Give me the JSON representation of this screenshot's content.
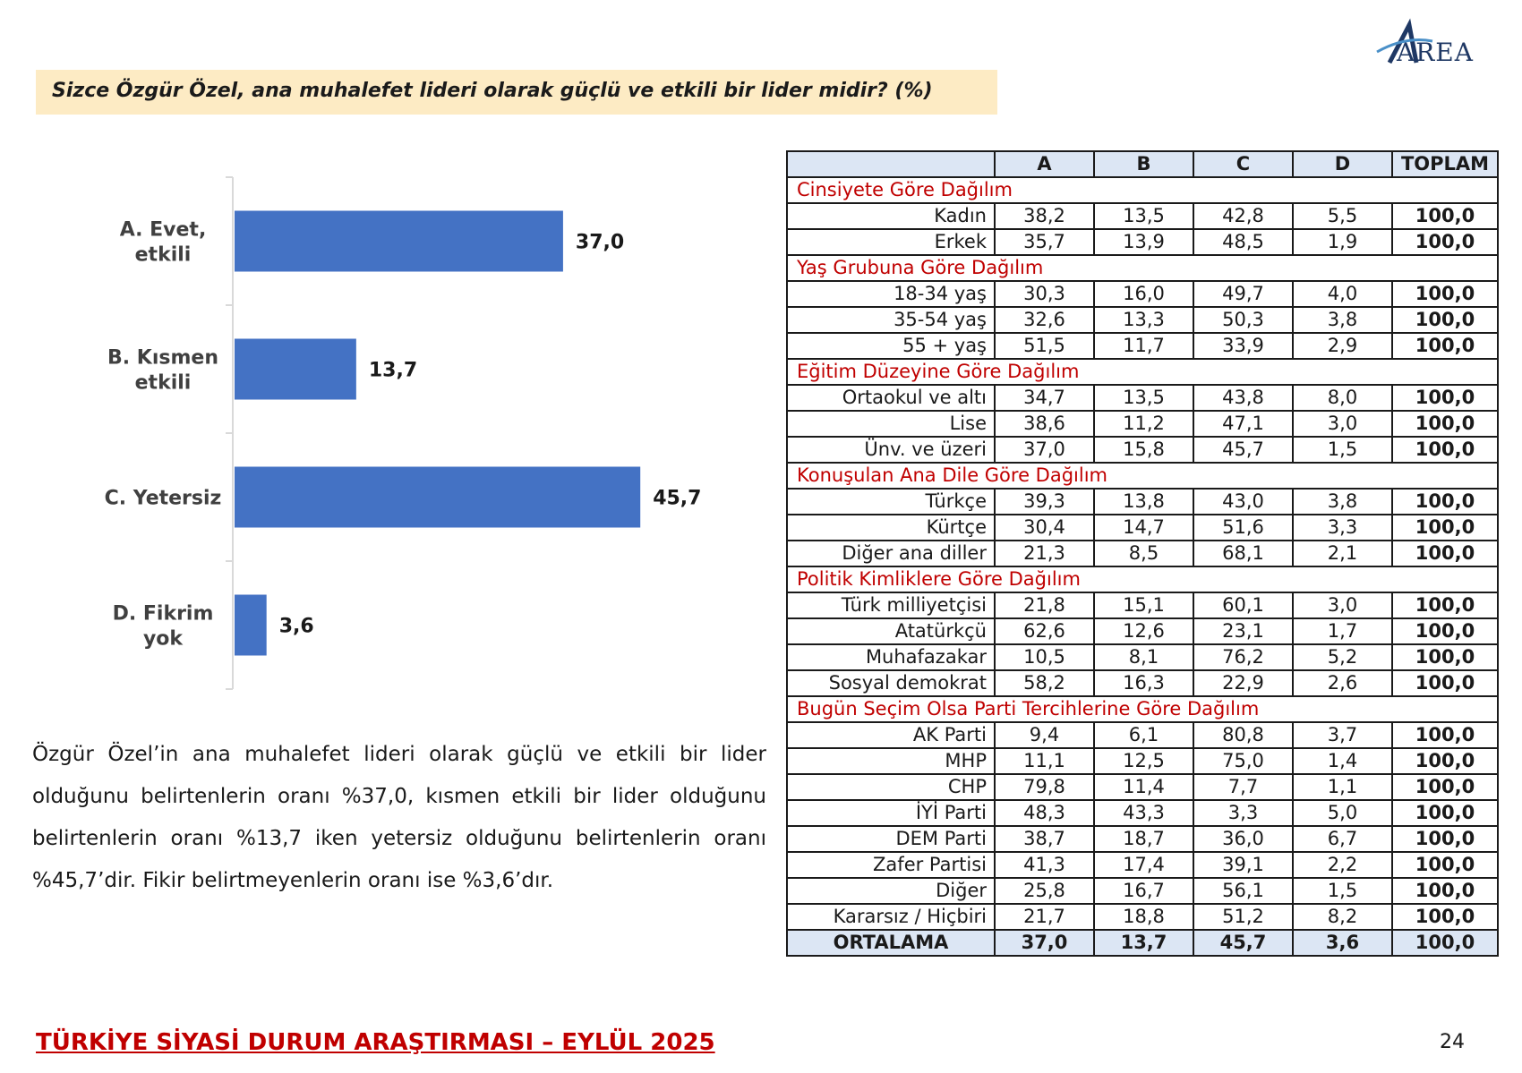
{
  "brand": {
    "logo_text": "AREA"
  },
  "question": "Sizce Özgür Özel, ana muhalefet lideri olarak güçlü ve etkili bir lider midir? (%)",
  "chart_data": {
    "type": "bar",
    "orientation": "horizontal",
    "categories": [
      [
        "A. Evet,",
        "etkili"
      ],
      [
        "B. Kısmen",
        "etkili"
      ],
      [
        "C. Yetersiz"
      ],
      [
        "D. Fikrim",
        "yok"
      ]
    ],
    "values": [
      37.0,
      13.7,
      45.7,
      3.6
    ],
    "value_labels": [
      "37,0",
      "13,7",
      "45,7",
      "3,6"
    ],
    "xlim": [
      0,
      60
    ],
    "grid": false,
    "bar_color": "#4472c4"
  },
  "summary": "Özgür Özel’in ana muhalefet lideri olarak güçlü ve etkili bir lider olduğunu belirtenlerin oranı %37,0, kısmen etkili bir lider olduğunu belirtenlerin oranı %13,7 iken yetersiz olduğunu belirtenlerin oranı %45,7’dir. Fikir belirtmeyenlerin oranı ise %3,6’dır.",
  "table": {
    "headers": [
      "",
      "A",
      "B",
      "C",
      "D",
      "TOPLAM"
    ],
    "sections": [
      {
        "title": "Cinsiyete Göre Dağılım",
        "rows": [
          [
            "Kadın",
            "38,2",
            "13,5",
            "42,8",
            "5,5",
            "100,0"
          ],
          [
            "Erkek",
            "35,7",
            "13,9",
            "48,5",
            "1,9",
            "100,0"
          ]
        ]
      },
      {
        "title": "Yaş Grubuna Göre Dağılım",
        "rows": [
          [
            "18-34 yaş",
            "30,3",
            "16,0",
            "49,7",
            "4,0",
            "100,0"
          ],
          [
            "35-54 yaş",
            "32,6",
            "13,3",
            "50,3",
            "3,8",
            "100,0"
          ],
          [
            "55 + yaş",
            "51,5",
            "11,7",
            "33,9",
            "2,9",
            "100,0"
          ]
        ]
      },
      {
        "title": "Eğitim Düzeyine Göre Dağılım",
        "rows": [
          [
            "Ortaokul ve altı",
            "34,7",
            "13,5",
            "43,8",
            "8,0",
            "100,0"
          ],
          [
            "Lise",
            "38,6",
            "11,2",
            "47,1",
            "3,0",
            "100,0"
          ],
          [
            "Ünv. ve üzeri",
            "37,0",
            "15,8",
            "45,7",
            "1,5",
            "100,0"
          ]
        ]
      },
      {
        "title": "Konuşulan Ana Dile Göre Dağılım",
        "rows": [
          [
            "Türkçe",
            "39,3",
            "13,8",
            "43,0",
            "3,8",
            "100,0"
          ],
          [
            "Kürtçe",
            "30,4",
            "14,7",
            "51,6",
            "3,3",
            "100,0"
          ],
          [
            "Diğer ana diller",
            "21,3",
            "8,5",
            "68,1",
            "2,1",
            "100,0"
          ]
        ]
      },
      {
        "title": "Politik Kimliklere Göre Dağılım",
        "rows": [
          [
            "Türk milliyetçisi",
            "21,8",
            "15,1",
            "60,1",
            "3,0",
            "100,0"
          ],
          [
            "Atatürkçü",
            "62,6",
            "12,6",
            "23,1",
            "1,7",
            "100,0"
          ],
          [
            "Muhafazakar",
            "10,5",
            "8,1",
            "76,2",
            "5,2",
            "100,0"
          ],
          [
            "Sosyal demokrat",
            "58,2",
            "16,3",
            "22,9",
            "2,6",
            "100,0"
          ]
        ]
      },
      {
        "title": "Bugün Seçim Olsa Parti Tercihlerine Göre Dağılım",
        "rows": [
          [
            "AK Parti",
            "9,4",
            "6,1",
            "80,8",
            "3,7",
            "100,0"
          ],
          [
            "MHP",
            "11,1",
            "12,5",
            "75,0",
            "1,4",
            "100,0"
          ],
          [
            "CHP",
            "79,8",
            "11,4",
            "7,7",
            "1,1",
            "100,0"
          ],
          [
            "İYİ Parti",
            "48,3",
            "43,3",
            "3,3",
            "5,0",
            "100,0"
          ],
          [
            "DEM Parti",
            "38,7",
            "18,7",
            "36,0",
            "6,7",
            "100,0"
          ],
          [
            "Zafer Partisi",
            "41,3",
            "17,4",
            "39,1",
            "2,2",
            "100,0"
          ],
          [
            "Diğer",
            "25,8",
            "16,7",
            "56,1",
            "1,5",
            "100,0"
          ],
          [
            "Kararsız / Hiçbiri",
            "21,7",
            "18,8",
            "51,2",
            "8,2",
            "100,0"
          ]
        ]
      }
    ],
    "average": [
      "ORTALAMA",
      "37,0",
      "13,7",
      "45,7",
      "3,6",
      "100,0"
    ]
  },
  "footer": {
    "title": "TÜRKİYE SİYASİ DURUM ARAŞTIRMASI – EYLÜL 2025",
    "page": "24"
  }
}
